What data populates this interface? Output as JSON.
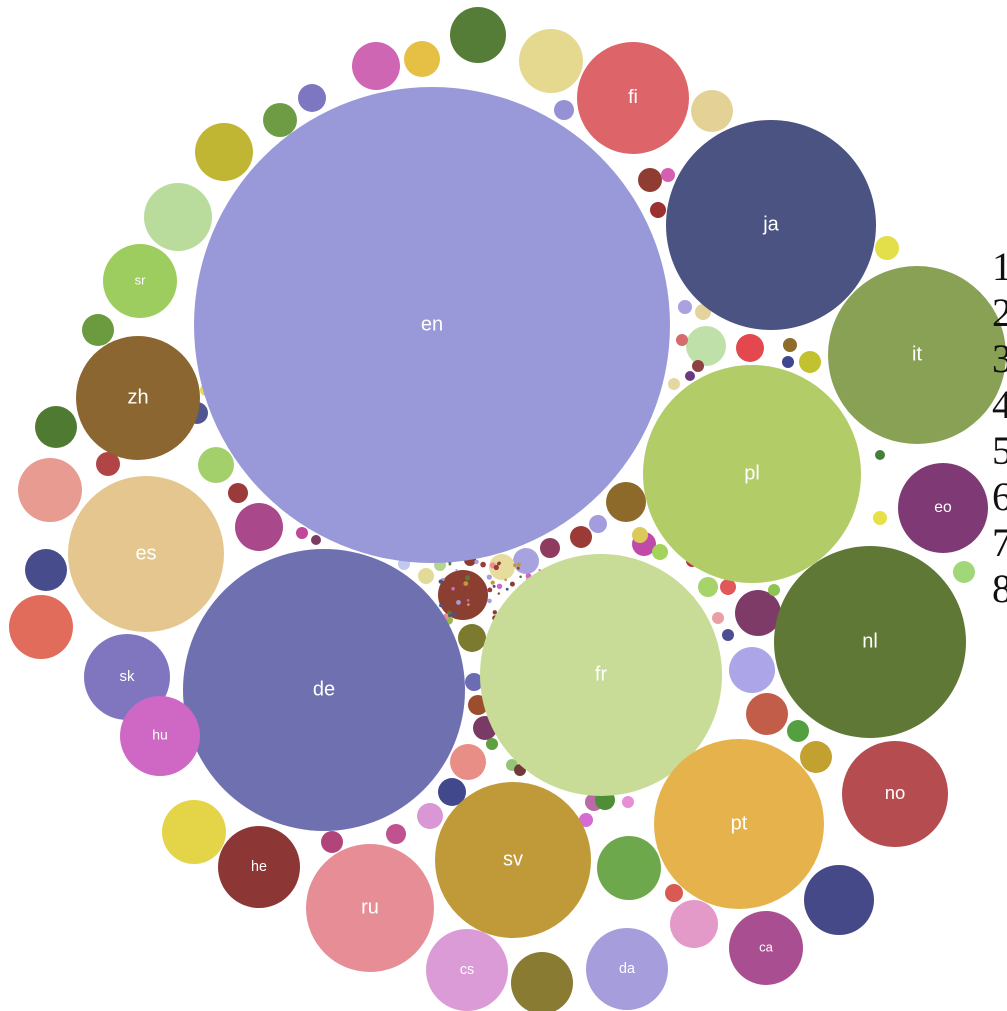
{
  "chart_data": {
    "type": "bubble",
    "labeled_bubbles": [
      {
        "label": "en",
        "color": "#9999d9"
      },
      {
        "label": "de",
        "color": "#6f70b0"
      },
      {
        "label": "fr",
        "color": "#c8dc98"
      },
      {
        "label": "pl",
        "color": "#b2cc68"
      },
      {
        "label": "ja",
        "color": "#4b5382"
      },
      {
        "label": "it",
        "color": "#88a155"
      },
      {
        "label": "nl",
        "color": "#5f7836"
      },
      {
        "label": "sv",
        "color": "#c09a38"
      },
      {
        "label": "pt",
        "color": "#e5b24b"
      },
      {
        "label": "es",
        "color": "#e4c68e"
      },
      {
        "label": "ru",
        "color": "#e68d96"
      },
      {
        "label": "zh",
        "color": "#8b6630"
      },
      {
        "label": "fi",
        "color": "#dd6468"
      },
      {
        "label": "no",
        "color": "#b54d50"
      },
      {
        "label": "cs",
        "color": "#da9bd6"
      },
      {
        "label": "da",
        "color": "#a59ddc"
      },
      {
        "label": "sk",
        "color": "#8076bf"
      },
      {
        "label": "ca",
        "color": "#a94f91"
      },
      {
        "label": "he",
        "color": "#8c3636"
      },
      {
        "label": "hu",
        "color": "#cf67c4"
      },
      {
        "label": "sr",
        "color": "#9ccd5e"
      },
      {
        "label": "eo",
        "color": "#7f3a75"
      }
    ]
  },
  "rank_list": [
    "1",
    "2",
    "3",
    "4",
    "5",
    "6",
    "7",
    "8"
  ]
}
